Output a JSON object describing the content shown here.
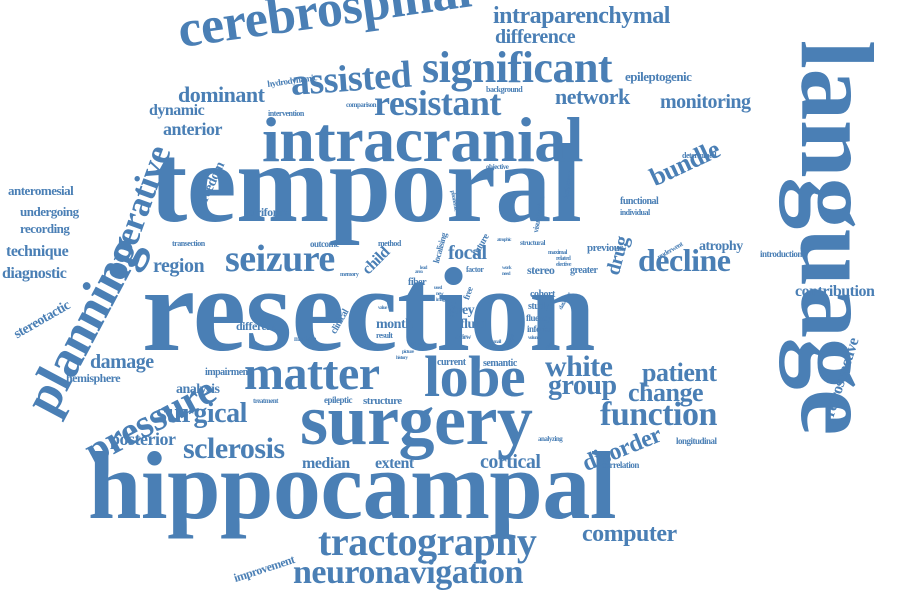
{
  "palette": {
    "word": "#4a7fb5",
    "background": "#ffffff"
  },
  "words": {
    "temporal": "temporal",
    "resection": "resection",
    "hippocampal": "hippocampal",
    "language": "language",
    "surgery": "surgery",
    "intracranial": "intracranial",
    "cerebrospinal": "cerebrospinal",
    "lobe": "lobe",
    "matter": "matter",
    "planning": "planning",
    "seizure": "seizure",
    "tractography": "tractography",
    "neuronavigation": "neuronavigation",
    "significant": "significant",
    "resistant": "resistant",
    "assisted": "assisted",
    "pressure": "pressure",
    "function": "function",
    "white": "white",
    "group": "group",
    "operative": "operative",
    "sclerosis": "sclerosis",
    "surgical": "surgical",
    "decline": "decline",
    "patient": "patient",
    "change": "change",
    "computer": "computer",
    "disorder": "disorder",
    "intraparenchymal": "intraparenchymal",
    "difference": "difference",
    "dominant": "dominant",
    "network": "network",
    "monitoring": "monitoring",
    "bundle": "bundle",
    "focal": "focal",
    "region": "region",
    "damage": "damage",
    "posterior": "posterior",
    "cortical": "cortical",
    "median": "median",
    "extent": "extent",
    "contribution": "contribution",
    "retrospective": "retrospective",
    "drug": "drug",
    "anterior": "anterior",
    "dynamic": "dynamic",
    "anteromesial": "anteromesial",
    "undergoing": "undergoing",
    "recording": "recording",
    "technique": "technique",
    "diagnostic": "diagnostic",
    "stereotactic": "stereotactic",
    "hemisphere": "hemisphere",
    "analysis": "analysis",
    "improvement": "improvement",
    "epileptogenic": "epileptogenic",
    "atrophy": "atrophy",
    "freedom": "freedom",
    "piriform": "piriform",
    "different": "different",
    "hydrodynamic": "hydrodynamic",
    "background": "background",
    "intervention": "intervention",
    "comparison": "comparison",
    "functional": "functional",
    "individual": "individual",
    "determined": "determined",
    "introduction": "introduction",
    "longitudinal": "longitudinal",
    "correlation": "correlation",
    "analyzing": "analyzing",
    "impairment": "impairment",
    "treatment": "treatment",
    "epileptic": "epileptic",
    "structure": "structure",
    "stereo": "stereo",
    "greater": "greater",
    "previous": "previous",
    "underwent": "underwent",
    "fluid": "fluid",
    "grey": "grey",
    "study": "study",
    "month": "month",
    "cohort": "cohort",
    "fluency": "fluency",
    "inferior": "inferior",
    "child": "child",
    "outcome": "outcome",
    "method": "method",
    "transection": "transection",
    "clinical": "clinical",
    "data": "data",
    "fiber": "fiber",
    "free": "free",
    "future": "future",
    "factor": "factor",
    "localising": "localising",
    "visualization": "visualization",
    "ipsilateral": "ipsilateral",
    "objective": "objective",
    "phonemic": "phonemic",
    "structural": "structural",
    "maximal": "maximal",
    "related": "related",
    "elective": "elective",
    "semantic": "semantic",
    "current": "current",
    "review": "review",
    "result": "result",
    "machine": "machine",
    "resect": "resect",
    "memory": "memory",
    "volume": "volume",
    "picture": "picture",
    "history": "history",
    "lesional": "lesional",
    "database": "database",
    "principal": "principal",
    "cause": "cause",
    "atrophic": "atrophic",
    "need": "need",
    "work": "work",
    "new": "new",
    "value": "value",
    "image": "image",
    "used": "used",
    "area": "area",
    "lead": "lead",
    "small": "small"
  }
}
